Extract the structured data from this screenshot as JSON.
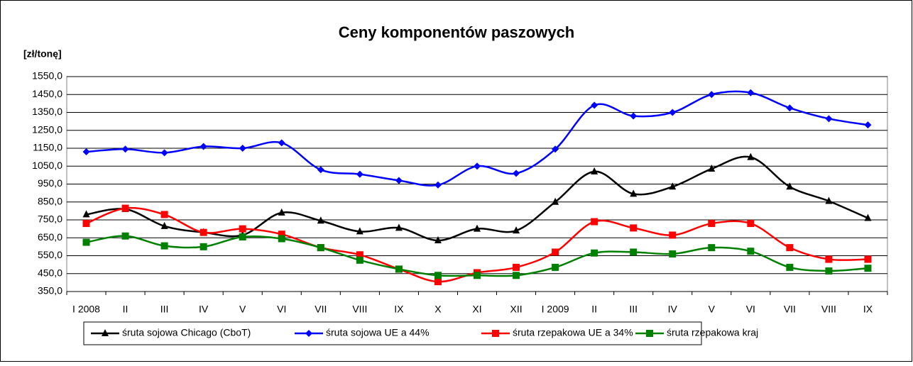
{
  "chart_data": {
    "type": "line",
    "title": "Ceny komponentów paszowych",
    "y_label": "[zł/tonę]",
    "categories": [
      "I 2008",
      "II",
      "III",
      "IV",
      "V",
      "VI",
      "VII",
      "VIII",
      "IX",
      "X",
      "XI",
      "XII",
      "I 2009",
      "II",
      "III",
      "IV",
      "V",
      "VI",
      "VII",
      "VIII",
      "IX"
    ],
    "series": [
      {
        "name": "śruta sojowa Chicago (CboT)",
        "color": "#000000",
        "marker": "triangle",
        "values": [
          780,
          810,
          715,
          680,
          665,
          790,
          745,
          685,
          705,
          635,
          700,
          690,
          850,
          1020,
          895,
          935,
          1035,
          1100,
          935,
          855,
          760
        ]
      },
      {
        "name": "śruta sojowa UE a 44%",
        "color": "#0000ff",
        "marker": "diamond",
        "values": [
          1130,
          1145,
          1125,
          1160,
          1150,
          1180,
          1030,
          1005,
          970,
          945,
          1050,
          1010,
          1145,
          1390,
          1330,
          1350,
          1450,
          1460,
          1375,
          1315,
          1280
        ]
      },
      {
        "name": "śruta rzepakowa UE a 34%",
        "color": "#ff0000",
        "marker": "square",
        "values": [
          730,
          815,
          780,
          680,
          700,
          670,
          595,
          555,
          475,
          405,
          455,
          485,
          570,
          740,
          705,
          665,
          730,
          730,
          595,
          530,
          530
        ]
      },
      {
        "name": "śruta rzepakowa kraj",
        "color": "#008000",
        "marker": "square",
        "values": [
          625,
          660,
          605,
          600,
          655,
          645,
          595,
          525,
          475,
          440,
          440,
          440,
          485,
          565,
          570,
          560,
          595,
          575,
          485,
          465,
          480
        ]
      }
    ],
    "ylim": [
      350,
      1550
    ],
    "yticks": [
      {
        "value": 350,
        "label": "350,0"
      },
      {
        "value": 450,
        "label": "450,0"
      },
      {
        "value": 550,
        "label": "550,0"
      },
      {
        "value": 650,
        "label": "650,0"
      },
      {
        "value": 750,
        "label": "750,0"
      },
      {
        "value": 850,
        "label": "850,0"
      },
      {
        "value": 950,
        "label": "950,0"
      },
      {
        "value": 1050,
        "label": "1050,0"
      },
      {
        "value": 1150,
        "label": "1150,0"
      },
      {
        "value": 1250,
        "label": "1250,0"
      },
      {
        "value": 1350,
        "label": "1350,0"
      },
      {
        "value": 1450,
        "label": "1450,0"
      },
      {
        "value": 1550,
        "label": "1550,0"
      }
    ],
    "grid": true,
    "smooth": true,
    "legend": "bottom"
  }
}
